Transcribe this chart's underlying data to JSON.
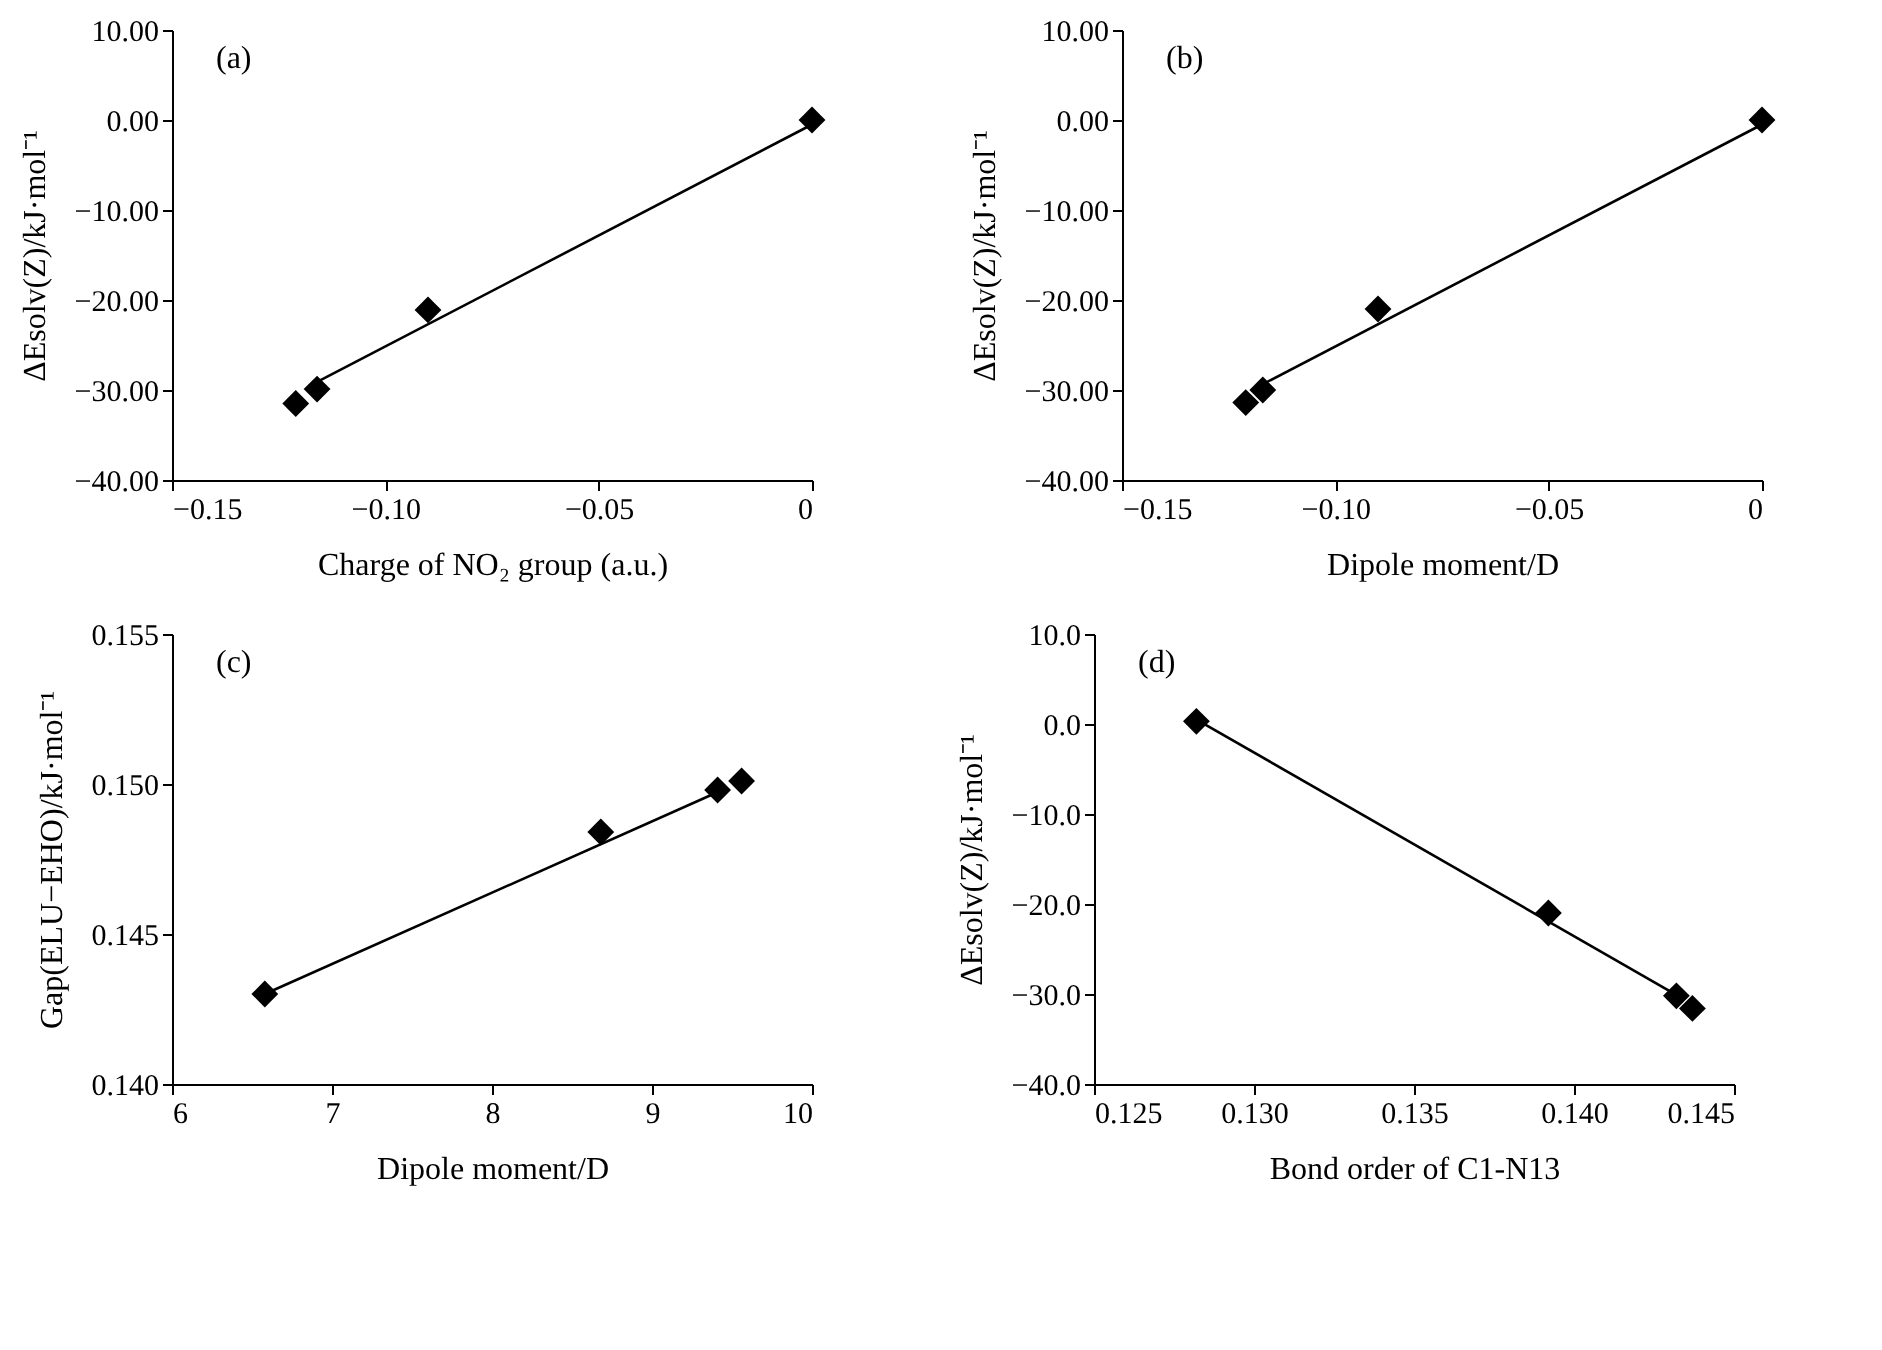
{
  "chart_data": [
    {
      "type": "scatter",
      "xlabel": "Charge of NO₂ group (a.u.)",
      "ylabel": "ΔEsolv(Z)/kJ·mol⁻¹",
      "annotations": [
        "(a)"
      ],
      "grid": false,
      "xlim": [
        -0.15,
        0
      ],
      "xticks": [
        {
          "value": -0.15,
          "label": "−0.15"
        },
        {
          "value": -0.1,
          "label": "−0.10"
        },
        {
          "value": -0.05,
          "label": "−0.05"
        },
        0
      ],
      "ylim": [
        -40,
        10
      ],
      "yticks": [
        {
          "value": -40,
          "label": "−40.00"
        },
        {
          "value": -30,
          "label": "−30.00"
        },
        {
          "value": -20,
          "label": "−20.00"
        },
        {
          "value": -10,
          "label": "−10.00"
        },
        {
          "value": 0,
          "label": "0.00"
        },
        {
          "value": 10,
          "label": "10.00"
        }
      ],
      "series": [
        {
          "marker": "diamond",
          "color": "#000000",
          "x": [
            -0.121,
            -0.116,
            -0.09,
            0
          ],
          "values": [
            -31.5,
            -29.9,
            -21.1,
            0
          ]
        },
        {
          "type": "line",
          "color": "#000000",
          "x": [
            -0.118,
            0
          ],
          "values": [
            -29.6,
            -0.5
          ]
        }
      ]
    },
    {
      "type": "scatter",
      "xlabel": "Dipole moment/D",
      "ylabel": "ΔEsolv(Z)/kJ·mol⁻¹",
      "annotations": [
        "(b)"
      ],
      "grid": false,
      "xlim": [
        -0.15,
        0
      ],
      "xticks": [
        {
          "value": -0.15,
          "label": "−0.15"
        },
        {
          "value": -0.1,
          "label": "−0.10"
        },
        {
          "value": -0.05,
          "label": "−0.05"
        },
        0
      ],
      "ylim": [
        -40,
        10
      ],
      "yticks": [
        {
          "value": -40,
          "label": "−40.00"
        },
        {
          "value": -30,
          "label": "−30.00"
        },
        {
          "value": -20,
          "label": "−20.00"
        },
        {
          "value": -10,
          "label": "−10.00"
        },
        {
          "value": 0,
          "label": "0.00"
        },
        {
          "value": 10,
          "label": "10.00"
        }
      ],
      "series": [
        {
          "marker": "diamond",
          "color": "#000000",
          "x": [
            -0.121,
            -0.117,
            -0.09,
            0
          ],
          "values": [
            -31.4,
            -30.0,
            -21.0,
            0
          ]
        },
        {
          "type": "line",
          "color": "#000000",
          "x": [
            -0.118,
            0
          ],
          "values": [
            -29.6,
            -0.5
          ]
        }
      ]
    },
    {
      "type": "scatter",
      "xlabel": "Dipole moment/D",
      "ylabel": "Gap(ELU−EHO)/kJ·mol⁻¹",
      "annotations": [
        "(c)"
      ],
      "grid": false,
      "xlim": [
        6,
        10
      ],
      "xticks": [
        6,
        7,
        8,
        9,
        10
      ],
      "ylim": [
        0.14,
        0.155
      ],
      "yticks": [
        {
          "value": 0.14,
          "label": "0.140"
        },
        0.145,
        {
          "value": 0.15,
          "label": "0.150"
        },
        0.155
      ],
      "series": [
        {
          "marker": "diamond",
          "color": "#000000",
          "x": [
            6.58,
            8.68,
            9.41,
            9.56
          ],
          "values": [
            0.143,
            0.1484,
            0.1498,
            0.1501
          ]
        },
        {
          "type": "line",
          "color": "#000000",
          "x": [
            6.58,
            9.44
          ],
          "values": [
            0.143,
            0.1498
          ]
        }
      ]
    },
    {
      "type": "scatter",
      "xlabel": "Bond order of C1-N13",
      "ylabel": "ΔEsolv(Z)/kJ·mol⁻¹",
      "annotations": [
        "(d)"
      ],
      "grid": false,
      "xlim": [
        0.125,
        0.145
      ],
      "xticks": [
        0.125,
        {
          "value": 0.13,
          "label": "0.130"
        },
        0.135,
        {
          "value": 0.14,
          "label": "0.140"
        },
        0.145
      ],
      "ylim": [
        -40,
        10
      ],
      "yticks": [
        {
          "value": -40,
          "label": "−40.0"
        },
        {
          "value": -30,
          "label": "−30.0"
        },
        {
          "value": -20,
          "label": "−20.0"
        },
        {
          "value": -10,
          "label": "−10.0"
        },
        {
          "value": 0,
          "label": "0.0"
        },
        {
          "value": 10,
          "label": "10.0"
        }
      ],
      "series": [
        {
          "marker": "diamond",
          "color": "#000000",
          "x": [
            0.1282,
            0.1392,
            0.1432,
            0.1437
          ],
          "values": [
            0.3,
            -21.0,
            -30.2,
            -31.6
          ]
        },
        {
          "type": "line",
          "color": "#000000",
          "x": [
            0.1283,
            0.1431
          ],
          "values": [
            0.3,
            -29.9
          ]
        }
      ]
    }
  ]
}
